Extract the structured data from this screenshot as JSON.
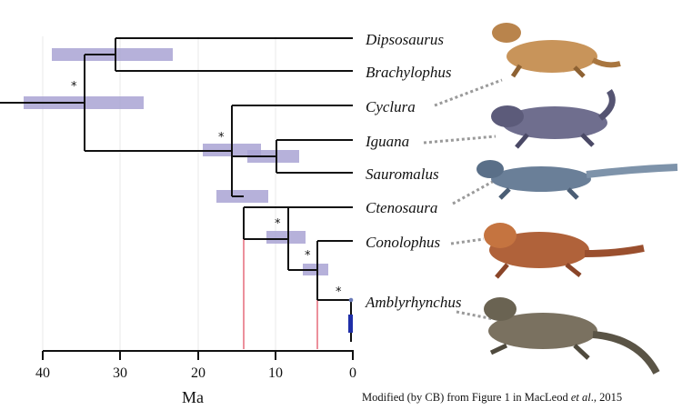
{
  "figure": {
    "axis_label": "Ma",
    "ticks": [
      "40",
      "30",
      "20",
      "10",
      "0"
    ],
    "caption_pre": "Modified (by CB) from Figure 1 in MacLeod ",
    "caption_etal": "et al",
    "caption_post": "., 2015",
    "support_mark": "*",
    "colors": {
      "branch": "#111111",
      "ci_bar": "#a9a3d3",
      "red_line": "#e0455a",
      "leader": "#9a9a9a",
      "grid": "#e8e8e8"
    }
  },
  "taxa": [
    {
      "name": "Dipsosaurus",
      "illustrated": true,
      "icon": "iguana-illustration"
    },
    {
      "name": "Brachylophus",
      "illustrated": false
    },
    {
      "name": "Cyclura",
      "illustrated": true,
      "icon": "iguana-illustration"
    },
    {
      "name": "Iguana",
      "illustrated": true,
      "icon": "iguana-illustration"
    },
    {
      "name": "Sauromalus",
      "illustrated": false
    },
    {
      "name": "Ctenosaura",
      "illustrated": true,
      "icon": "iguana-illustration"
    },
    {
      "name": "Conolophus",
      "illustrated": true,
      "icon": "iguana-illustration"
    },
    {
      "name": "Amblyrhynchus",
      "illustrated": true,
      "icon": "iguana-illustration"
    }
  ],
  "nodes": [
    {
      "id": "root",
      "age_ma": 35,
      "ci_ma": [
        42,
        27
      ],
      "supported": true
    },
    {
      "id": "dipso-brachy",
      "age_ma": 31,
      "ci_ma": [
        39,
        23
      ],
      "supported": false
    },
    {
      "id": "cyclura-rest",
      "age_ma": 15.5,
      "ci_ma": [
        19,
        12
      ],
      "supported": true
    },
    {
      "id": "iguana-sauro",
      "age_ma": 10,
      "ci_ma": [
        13,
        7
      ],
      "supported": false
    },
    {
      "id": "cteno-galap",
      "age_ma": 14,
      "ci_ma": [
        17.5,
        11
      ],
      "supported": false
    },
    {
      "id": "galapagos",
      "age_ma": 8,
      "ci_ma": [
        11,
        6
      ],
      "supported": true
    },
    {
      "id": "cono-ambly",
      "age_ma": 4.5,
      "ci_ma": [
        6,
        3
      ],
      "supported": true
    },
    {
      "id": "ambly-stem",
      "age_ma": 0.5,
      "ci_ma": [
        0.5,
        0.3
      ],
      "supported": true
    }
  ]
}
